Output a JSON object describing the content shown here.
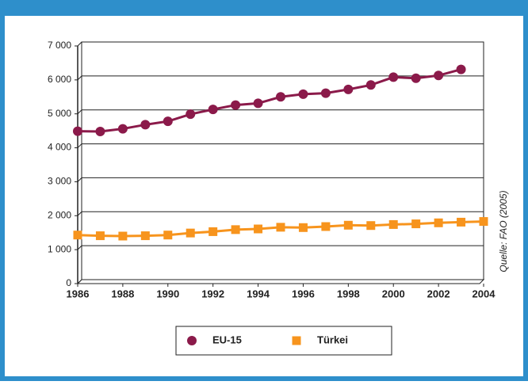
{
  "chart_data": {
    "type": "line",
    "source": "Quelle: FAO (2005)",
    "x": [
      1986,
      1987,
      1988,
      1989,
      1990,
      1991,
      1992,
      1993,
      1994,
      1995,
      1996,
      1997,
      1998,
      1999,
      2000,
      2001,
      2002,
      2003,
      2004
    ],
    "series": [
      {
        "name": "EU-15",
        "color": "#8b1a4a",
        "marker": "circle",
        "values": [
          4490,
          4480,
          4560,
          4680,
          4780,
          4990,
          5130,
          5260,
          5310,
          5500,
          5580,
          5610,
          5720,
          5850,
          6080,
          6050,
          6130,
          6310,
          null
        ]
      },
      {
        "name": "Türkei",
        "color": "#f7941d",
        "marker": "square",
        "values": [
          1430,
          1410,
          1400,
          1410,
          1430,
          1490,
          1530,
          1590,
          1610,
          1660,
          1650,
          1680,
          1720,
          1710,
          1740,
          1760,
          1790,
          1810,
          1830
        ]
      }
    ],
    "xlim": [
      1986,
      2004
    ],
    "xticks": [
      1986,
      1988,
      1990,
      1992,
      1994,
      1996,
      1998,
      2000,
      2002,
      2004
    ],
    "ylim": [
      0,
      7000
    ],
    "yticks": [
      0,
      {
        "value": 1000,
        "label": "1 000"
      },
      {
        "value": 2000,
        "label": "2 000"
      },
      {
        "value": 3000,
        "label": "3 000"
      },
      {
        "value": 4000,
        "label": "4 000"
      },
      {
        "value": 5000,
        "label": "5 000"
      },
      {
        "value": 6000,
        "label": "6 000"
      },
      {
        "value": 7000,
        "label": "7 000"
      }
    ],
    "grid": true
  }
}
